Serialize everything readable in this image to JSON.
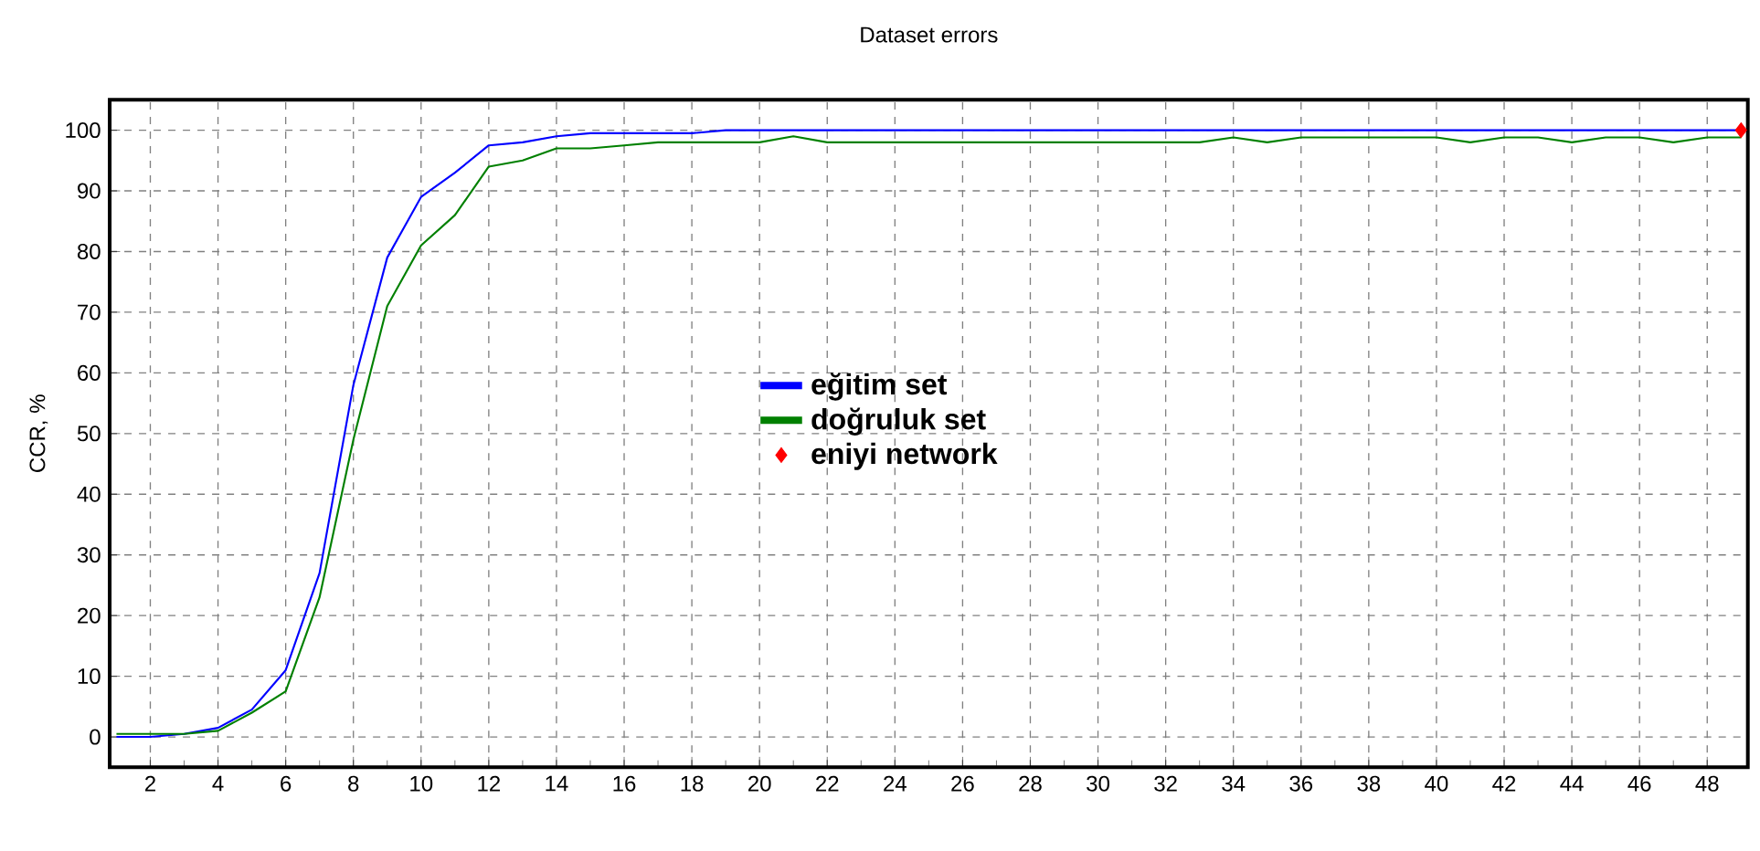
{
  "chart_data": {
    "type": "line",
    "title": "Dataset errors",
    "ylabel": "CCR, %",
    "x": [
      1,
      2,
      3,
      4,
      5,
      6,
      7,
      8,
      9,
      10,
      11,
      12,
      13,
      14,
      15,
      16,
      17,
      18,
      19,
      20,
      21,
      22,
      23,
      24,
      25,
      26,
      27,
      28,
      29,
      30,
      31,
      32,
      33,
      34,
      35,
      36,
      37,
      38,
      39,
      40,
      41,
      42,
      43,
      44,
      45,
      46,
      47,
      48,
      49
    ],
    "series": [
      {
        "name": "eğitim set",
        "color": "#0000ff",
        "values": [
          0,
          0,
          0.5,
          1.5,
          4.5,
          11,
          27,
          58,
          79,
          89,
          93,
          97.5,
          98,
          99,
          99.5,
          99.5,
          99.5,
          99.5,
          100,
          100,
          100,
          100,
          100,
          100,
          100,
          100,
          100,
          100,
          100,
          100,
          100,
          100,
          100,
          100,
          100,
          100,
          100,
          100,
          100,
          100,
          100,
          100,
          100,
          100,
          100,
          100,
          100,
          100,
          100
        ]
      },
      {
        "name": "doğruluk set",
        "color": "#008000",
        "values": [
          0.5,
          0.5,
          0.5,
          1,
          4,
          7.5,
          23,
          49,
          71,
          81,
          86,
          94,
          95,
          97,
          97,
          97.5,
          98,
          98,
          98,
          98,
          99,
          98,
          98,
          98,
          98,
          98,
          98,
          98,
          98,
          98,
          98,
          98,
          98,
          98.8,
          98,
          98.8,
          98.8,
          98.8,
          98.8,
          98.8,
          98,
          98.8,
          98.8,
          98,
          98.8,
          98.8,
          98,
          98.8,
          98.8
        ]
      },
      {
        "name": "eniyi network",
        "type": "scatter",
        "marker": "diamond",
        "color": "#ff0000",
        "x": [
          49
        ],
        "values": [
          100
        ]
      }
    ],
    "xlim": [
      0.8,
      49.2
    ],
    "ylim": [
      -5,
      105
    ],
    "xticks": [
      2,
      4,
      6,
      8,
      10,
      12,
      14,
      16,
      18,
      20,
      22,
      24,
      26,
      28,
      30,
      32,
      34,
      36,
      38,
      40,
      42,
      44,
      46,
      48
    ],
    "yticks": [
      0,
      10,
      20,
      30,
      40,
      50,
      60,
      70,
      80,
      90,
      100
    ],
    "grid": true,
    "legend": "center",
    "marker": "none",
    "line_style": "solid"
  }
}
